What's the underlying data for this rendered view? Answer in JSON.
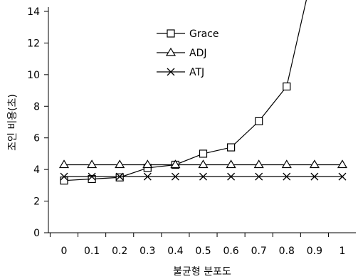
{
  "chart_data": {
    "type": "line",
    "title": "",
    "xlabel": "불균형 분포도",
    "ylabel": "조인 비용(초)",
    "categories": [
      "0",
      "0.1",
      "0.2",
      "0.3",
      "0.4",
      "0.5",
      "0.6",
      "0.7",
      "0.8",
      "0.9",
      "1"
    ],
    "x": [
      0,
      0.1,
      0.2,
      0.3,
      0.4,
      0.5,
      0.6,
      0.7,
      0.8,
      0.9,
      1.0
    ],
    "ylim": [
      0,
      14
    ],
    "yticks": [
      0,
      2,
      4,
      6,
      8,
      10,
      12,
      14
    ],
    "grid": false,
    "legend_position": "top-center",
    "series": [
      {
        "name": "Grace",
        "marker": "square",
        "color": "#000000",
        "values": [
          3.3,
          3.4,
          3.5,
          4.1,
          4.3,
          5.0,
          5.4,
          7.05,
          9.25,
          17,
          null
        ]
      },
      {
        "name": "ADJ",
        "marker": "triangle",
        "color": "#000000",
        "values": [
          4.3,
          4.3,
          4.3,
          4.3,
          4.3,
          4.3,
          4.3,
          4.3,
          4.3,
          4.3,
          4.3
        ]
      },
      {
        "name": "ATJ",
        "marker": "x",
        "color": "#000000",
        "values": [
          3.55,
          3.55,
          3.55,
          3.55,
          3.55,
          3.55,
          3.55,
          3.55,
          3.55,
          3.55,
          3.55
        ]
      }
    ]
  }
}
